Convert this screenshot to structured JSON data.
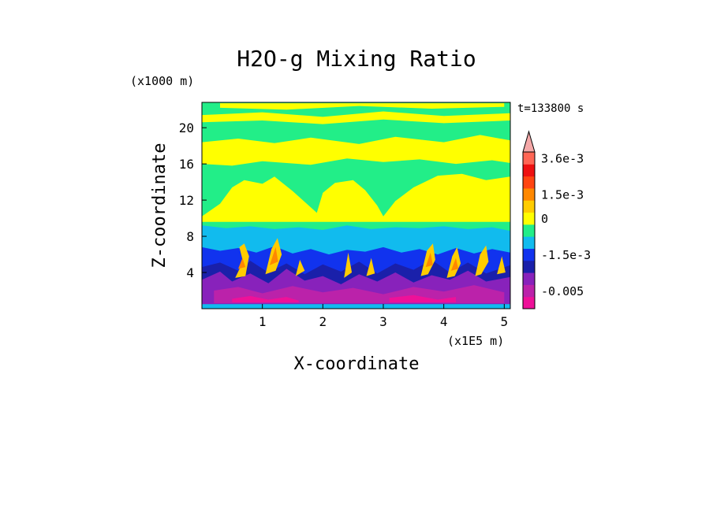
{
  "chart_data": {
    "type": "heatmap",
    "title": "H2O-g Mixing Ratio",
    "xlabel": "X-coordinate",
    "ylabel": "Z-coordinate",
    "x_unit": "(x1E5 m)",
    "y_unit": "(x1000 m)",
    "time_label": "t=133800 s",
    "xlim": [
      0,
      5.1
    ],
    "ylim": [
      0,
      22.8
    ],
    "x_ticks": [
      1,
      2,
      3,
      4,
      5
    ],
    "y_ticks": [
      4,
      8,
      12,
      16,
      20
    ],
    "colorbar": {
      "levels": [
        {
          "color": "#ee1199",
          "label": ""
        },
        {
          "color": "#bb22aa",
          "label": "-0.005"
        },
        {
          "color": "#8822bb",
          "label": ""
        },
        {
          "color": "#1a20aa",
          "label": ""
        },
        {
          "color": "#1133ee",
          "label": "-1.5e-3"
        },
        {
          "color": "#11bbee",
          "label": ""
        },
        {
          "color": "#22ee88",
          "label": ""
        },
        {
          "color": "#ffff00",
          "label": "0"
        },
        {
          "color": "#ffcc00",
          "label": ""
        },
        {
          "color": "#ff8800",
          "label": "1.5e-3"
        },
        {
          "color": "#ff4411",
          "label": ""
        },
        {
          "color": "#ee1111",
          "label": ""
        },
        {
          "color": "#ff6655",
          "label": "3.6e-3"
        }
      ],
      "overflow_color": "#f5a8a8"
    },
    "background_color": "#22ee88",
    "fields": [
      {
        "level": 5,
        "points": [
          [
            0,
            9.2
          ],
          [
            0.4,
            8.9
          ],
          [
            0.8,
            9.1
          ],
          [
            1.2,
            8.8
          ],
          [
            1.6,
            9.0
          ],
          [
            2.0,
            8.7
          ],
          [
            2.4,
            9.2
          ],
          [
            2.8,
            8.8
          ],
          [
            3.2,
            9.0
          ],
          [
            3.6,
            8.9
          ],
          [
            4.0,
            9.1
          ],
          [
            4.4,
            8.8
          ],
          [
            4.8,
            9.0
          ],
          [
            5.1,
            8.6
          ],
          [
            5.1,
            0
          ],
          [
            0,
            0
          ]
        ]
      },
      {
        "level": 4,
        "points": [
          [
            0,
            6.8
          ],
          [
            0.3,
            6.4
          ],
          [
            0.6,
            6.7
          ],
          [
            0.9,
            6.2
          ],
          [
            1.2,
            6.9
          ],
          [
            1.5,
            6.1
          ],
          [
            1.8,
            6.6
          ],
          [
            2.1,
            6.0
          ],
          [
            2.4,
            6.5
          ],
          [
            2.7,
            6.3
          ],
          [
            3.0,
            6.8
          ],
          [
            3.3,
            6.2
          ],
          [
            3.6,
            6.6
          ],
          [
            3.9,
            6.0
          ],
          [
            4.2,
            6.7
          ],
          [
            4.5,
            6.1
          ],
          [
            4.8,
            6.6
          ],
          [
            5.1,
            6.2
          ],
          [
            5.1,
            0
          ],
          [
            0,
            0
          ]
        ]
      },
      {
        "level": 3,
        "points": [
          [
            0,
            4.6
          ],
          [
            0.3,
            5.1
          ],
          [
            0.6,
            4.2
          ],
          [
            0.8,
            5.3
          ],
          [
            1.1,
            4.0
          ],
          [
            1.4,
            5.0
          ],
          [
            1.7,
            3.8
          ],
          [
            2.0,
            4.9
          ],
          [
            2.3,
            4.1
          ],
          [
            2.6,
            5.2
          ],
          [
            2.9,
            3.9
          ],
          [
            3.2,
            5.0
          ],
          [
            3.5,
            4.3
          ],
          [
            3.8,
            5.4
          ],
          [
            4.1,
            4.0
          ],
          [
            4.4,
            5.1
          ],
          [
            4.7,
            3.9
          ],
          [
            5.1,
            4.8
          ],
          [
            5.1,
            0
          ],
          [
            0,
            0
          ]
        ]
      },
      {
        "level": 2,
        "points": [
          [
            0,
            3.2
          ],
          [
            0.3,
            4.1
          ],
          [
            0.5,
            3.0
          ],
          [
            0.8,
            3.9
          ],
          [
            1.1,
            2.8
          ],
          [
            1.4,
            4.4
          ],
          [
            1.7,
            3.1
          ],
          [
            2.0,
            3.6
          ],
          [
            2.3,
            2.7
          ],
          [
            2.6,
            3.8
          ],
          [
            2.9,
            3.0
          ],
          [
            3.2,
            4.0
          ],
          [
            3.5,
            2.9
          ],
          [
            3.8,
            3.7
          ],
          [
            4.1,
            3.2
          ],
          [
            4.4,
            4.2
          ],
          [
            4.7,
            3.0
          ],
          [
            5.1,
            3.5
          ],
          [
            5.1,
            0
          ],
          [
            0,
            0
          ]
        ]
      },
      {
        "level": 1,
        "points": [
          [
            0.2,
            2.0
          ],
          [
            0.6,
            2.4
          ],
          [
            1.0,
            1.7
          ],
          [
            1.5,
            2.5
          ],
          [
            2.0,
            1.8
          ],
          [
            2.5,
            2.3
          ],
          [
            3.0,
            1.6
          ],
          [
            3.5,
            2.4
          ],
          [
            4.0,
            1.9
          ],
          [
            4.5,
            2.6
          ],
          [
            5.0,
            1.8
          ],
          [
            5.0,
            0.6
          ],
          [
            0.2,
            0.6
          ]
        ]
      },
      {
        "level": 0,
        "points": [
          [
            0.5,
            1.1
          ],
          [
            0.8,
            1.4
          ],
          [
            1.1,
            1.0
          ],
          [
            1.4,
            1.3
          ],
          [
            1.6,
            0.9
          ],
          [
            1.6,
            0.7
          ],
          [
            0.5,
            0.7
          ]
        ]
      },
      {
        "level": 0,
        "points": [
          [
            3.1,
            1.2
          ],
          [
            3.5,
            1.5
          ],
          [
            3.9,
            1.0
          ],
          [
            4.2,
            1.3
          ],
          [
            4.2,
            0.7
          ],
          [
            3.1,
            0.7
          ]
        ]
      },
      {
        "level": 5,
        "points": [
          [
            0,
            0.5
          ],
          [
            5.1,
            0.5
          ],
          [
            5.1,
            0
          ],
          [
            0,
            0
          ]
        ]
      },
      {
        "level": 7,
        "points": [
          [
            0,
            10.2
          ],
          [
            0.3,
            11.6
          ],
          [
            0.5,
            13.4
          ],
          [
            0.7,
            14.2
          ],
          [
            1.0,
            13.8
          ],
          [
            1.2,
            14.6
          ],
          [
            1.5,
            13.0
          ],
          [
            1.7,
            11.8
          ],
          [
            1.9,
            10.6
          ],
          [
            2.0,
            12.8
          ],
          [
            2.2,
            13.9
          ],
          [
            2.5,
            14.2
          ],
          [
            2.7,
            13.1
          ],
          [
            2.9,
            11.4
          ],
          [
            3.0,
            10.2
          ],
          [
            3.2,
            11.9
          ],
          [
            3.5,
            13.4
          ],
          [
            3.9,
            14.7
          ],
          [
            4.3,
            14.9
          ],
          [
            4.7,
            14.2
          ],
          [
            5.1,
            14.6
          ],
          [
            5.1,
            9.6
          ],
          [
            0,
            9.6
          ]
        ]
      },
      {
        "level": 7,
        "points": [
          [
            0,
            16.0
          ],
          [
            0.5,
            15.8
          ],
          [
            1.0,
            16.3
          ],
          [
            1.8,
            15.9
          ],
          [
            2.4,
            16.6
          ],
          [
            3.0,
            16.2
          ],
          [
            3.6,
            16.5
          ],
          [
            4.2,
            16.0
          ],
          [
            4.8,
            16.4
          ],
          [
            5.1,
            16.1
          ],
          [
            5.1,
            18.6
          ],
          [
            4.6,
            19.2
          ],
          [
            4.0,
            18.4
          ],
          [
            3.2,
            19.0
          ],
          [
            2.6,
            18.2
          ],
          [
            1.8,
            18.9
          ],
          [
            1.2,
            18.3
          ],
          [
            0.6,
            18.8
          ],
          [
            0,
            18.4
          ]
        ]
      },
      {
        "level": 7,
        "points": [
          [
            0,
            20.6
          ],
          [
            1.0,
            20.8
          ],
          [
            2.0,
            20.4
          ],
          [
            3.0,
            20.9
          ],
          [
            4.0,
            20.5
          ],
          [
            5.1,
            20.8
          ],
          [
            5.1,
            21.6
          ],
          [
            4.0,
            21.3
          ],
          [
            3.0,
            21.8
          ],
          [
            2.0,
            21.2
          ],
          [
            1.0,
            21.7
          ],
          [
            0,
            21.4
          ]
        ]
      },
      {
        "level": 7,
        "points": [
          [
            0.3,
            22.2
          ],
          [
            1.4,
            22.0
          ],
          [
            2.6,
            22.4
          ],
          [
            3.8,
            22.1
          ],
          [
            5.0,
            22.3
          ],
          [
            5.0,
            22.7
          ],
          [
            0.3,
            22.7
          ]
        ]
      },
      {
        "level": 8,
        "points": [
          [
            0.55,
            3.4
          ],
          [
            0.68,
            5.2
          ],
          [
            0.62,
            6.8
          ],
          [
            0.7,
            7.2
          ],
          [
            0.78,
            5.8
          ],
          [
            0.72,
            3.6
          ]
        ]
      },
      {
        "level": 9,
        "points": [
          [
            0.6,
            4.4
          ],
          [
            0.67,
            5.6
          ],
          [
            0.72,
            4.6
          ]
        ]
      },
      {
        "level": 8,
        "points": [
          [
            1.05,
            3.8
          ],
          [
            1.15,
            6.6
          ],
          [
            1.25,
            7.8
          ],
          [
            1.32,
            6.0
          ],
          [
            1.22,
            4.2
          ]
        ]
      },
      {
        "level": 9,
        "points": [
          [
            1.12,
            4.8
          ],
          [
            1.22,
            6.8
          ],
          [
            1.26,
            5.2
          ]
        ]
      },
      {
        "level": 8,
        "points": [
          [
            1.55,
            3.6
          ],
          [
            1.62,
            5.4
          ],
          [
            1.7,
            4.2
          ]
        ]
      },
      {
        "level": 8,
        "points": [
          [
            2.35,
            3.4
          ],
          [
            2.42,
            6.2
          ],
          [
            2.48,
            4.0
          ]
        ]
      },
      {
        "level": 8,
        "points": [
          [
            2.72,
            3.6
          ],
          [
            2.8,
            5.6
          ],
          [
            2.86,
            3.9
          ]
        ]
      },
      {
        "level": 8,
        "points": [
          [
            3.62,
            3.6
          ],
          [
            3.72,
            6.4
          ],
          [
            3.82,
            7.2
          ],
          [
            3.86,
            5.4
          ],
          [
            3.74,
            3.8
          ]
        ]
      },
      {
        "level": 9,
        "points": [
          [
            3.7,
            4.6
          ],
          [
            3.78,
            6.2
          ],
          [
            3.82,
            4.8
          ]
        ]
      },
      {
        "level": 8,
        "points": [
          [
            4.05,
            3.4
          ],
          [
            4.14,
            5.8
          ],
          [
            4.22,
            6.8
          ],
          [
            4.28,
            5.0
          ],
          [
            4.18,
            3.6
          ]
        ]
      },
      {
        "level": 9,
        "points": [
          [
            4.12,
            4.2
          ],
          [
            4.2,
            5.6
          ],
          [
            4.24,
            4.4
          ]
        ]
      },
      {
        "level": 8,
        "points": [
          [
            4.52,
            3.6
          ],
          [
            4.6,
            6.0
          ],
          [
            4.7,
            7.0
          ],
          [
            4.74,
            5.2
          ],
          [
            4.62,
            3.8
          ]
        ]
      },
      {
        "level": 8,
        "points": [
          [
            4.88,
            3.8
          ],
          [
            4.96,
            5.8
          ],
          [
            5.02,
            4.0
          ]
        ]
      }
    ]
  }
}
